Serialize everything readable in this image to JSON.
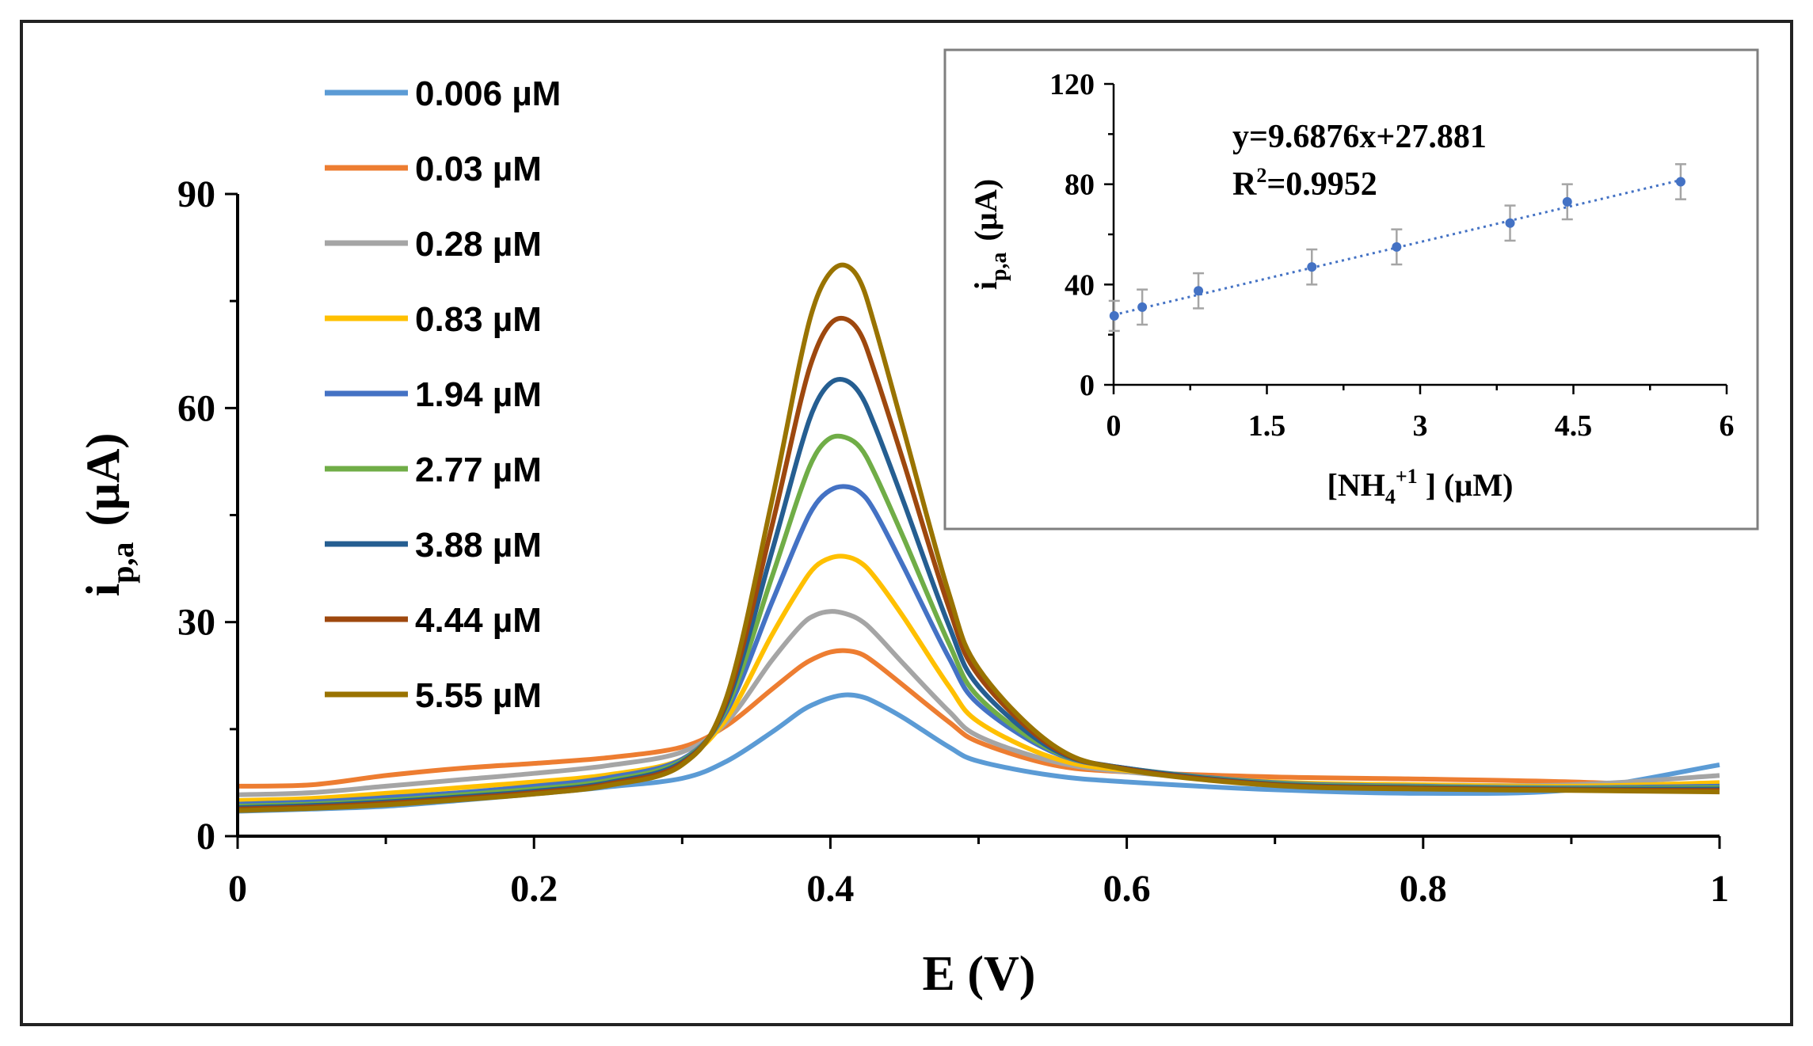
{
  "chart_data": [
    {
      "type": "line",
      "title": "",
      "xlabel": "E (V)",
      "ylabel_main": "i",
      "ylabel_sub": "p,a",
      "ylabel_unit": "(µA)",
      "xlim": [
        0,
        1
      ],
      "ylim": [
        0,
        90
      ],
      "xticks": [
        0,
        0.2,
        0.4,
        0.6,
        0.8,
        1
      ],
      "xtick_labels": [
        "0",
        "0.2",
        "0.4",
        "0.6",
        "0.8",
        "1"
      ],
      "yticks": [
        0,
        30,
        60,
        90
      ],
      "ytick_labels": [
        "0",
        "30",
        "60",
        "90"
      ],
      "grid": false,
      "legend_position": "top-left",
      "x": [
        0,
        0.05,
        0.1,
        0.15,
        0.2,
        0.25,
        0.3,
        0.33,
        0.36,
        0.38,
        0.39,
        0.4,
        0.41,
        0.42,
        0.43,
        0.45,
        0.48,
        0.5,
        0.55,
        0.6,
        0.7,
        0.8,
        0.9,
        1
      ],
      "series": [
        {
          "name": "0.006 µM",
          "color": "#5B9BD5",
          "values": [
            3.5,
            3.8,
            4.2,
            5.0,
            5.9,
            6.9,
            8.1,
            10.5,
            14.5,
            17.5,
            18.6,
            19.4,
            19.8,
            19.6,
            18.8,
            16.5,
            12.5,
            10.5,
            8.5,
            7.6,
            6.5,
            6.0,
            6.5,
            10.0
          ]
        },
        {
          "name": "0.03 µM",
          "color": "#ED7D31",
          "values": [
            7.0,
            7.2,
            8.5,
            9.5,
            10.2,
            11.0,
            12.5,
            15.5,
            20.5,
            23.8,
            25.0,
            25.8,
            26.0,
            25.6,
            24.3,
            21.0,
            16.0,
            13.2,
            10.0,
            9.0,
            8.3,
            8.0,
            7.6,
            6.8
          ]
        },
        {
          "name": "0.28 µM",
          "color": "#A5A5A5",
          "values": [
            5.8,
            6.1,
            7.0,
            7.9,
            8.8,
            9.9,
            11.8,
            16.0,
            24.5,
            29.5,
            31.0,
            31.5,
            31.2,
            30.3,
            28.5,
            24.0,
            17.5,
            14.0,
            10.5,
            9.0,
            7.5,
            7.2,
            7.2,
            8.5
          ]
        },
        {
          "name": "0.83 µM",
          "color": "#FFC000",
          "values": [
            5.0,
            5.3,
            6.0,
            6.8,
            7.6,
            8.6,
            10.8,
            16.5,
            28.0,
            35.0,
            37.8,
            39.0,
            39.2,
            38.4,
            36.3,
            30.5,
            21.0,
            16.0,
            11.0,
            9.2,
            7.6,
            7.2,
            7.0,
            7.5
          ]
        },
        {
          "name": "1.94 µM",
          "color": "#4472C4",
          "values": [
            4.5,
            4.8,
            5.4,
            6.1,
            7.0,
            8.2,
            10.8,
            17.5,
            32.5,
            42.5,
            46.5,
            48.5,
            49.0,
            48.2,
            45.5,
            37.5,
            25.0,
            18.5,
            11.8,
            9.5,
            7.5,
            7.0,
            6.8,
            7.0
          ]
        },
        {
          "name": "2.77 µM",
          "color": "#70AD47",
          "values": [
            4.2,
            4.5,
            5.0,
            5.8,
            6.6,
            7.8,
            10.6,
            18.0,
            36.0,
            48.5,
            53.5,
            55.8,
            55.9,
            54.5,
            50.8,
            41.5,
            27.0,
            19.5,
            12.0,
            9.5,
            7.4,
            6.9,
            6.7,
            6.8
          ]
        },
        {
          "name": "3.88 µM",
          "color": "#255E91",
          "values": [
            4.0,
            4.3,
            4.8,
            5.5,
            6.3,
            7.5,
            10.4,
            18.5,
            39.5,
            54.5,
            60.5,
            63.5,
            63.9,
            62.0,
            57.5,
            46.5,
            29.5,
            21.0,
            12.2,
            9.5,
            7.3,
            6.8,
            6.6,
            6.6
          ]
        },
        {
          "name": "4.44 µM",
          "color": "#9E480E",
          "values": [
            3.8,
            4.1,
            4.6,
            5.3,
            6.1,
            7.3,
            10.2,
            19.0,
            43.0,
            61.0,
            68.0,
            71.8,
            72.5,
            70.5,
            65.0,
            52.0,
            32.0,
            22.5,
            12.5,
            9.4,
            7.2,
            6.7,
            6.5,
            6.4
          ]
        },
        {
          "name": "5.55 µM",
          "color": "#997300",
          "values": [
            3.6,
            3.9,
            4.4,
            5.1,
            5.9,
            7.1,
            10.0,
            19.5,
            46.5,
            67.0,
            75.0,
            79.0,
            80.0,
            77.8,
            71.5,
            56.5,
            34.0,
            23.5,
            12.8,
            9.3,
            7.1,
            6.6,
            6.4,
            6.2
          ]
        }
      ]
    },
    {
      "type": "scatter",
      "title": "",
      "xlabel": "[NH4+1 ] (µM)",
      "xlabel_parts": {
        "pre": "[NH",
        "sub": "4",
        "sup": "+1",
        "post": " ] (µM)"
      },
      "ylabel_main": "i",
      "ylabel_sub": "p,a",
      "ylabel_unit": "(µA)",
      "xlim": [
        0,
        6
      ],
      "ylim": [
        0,
        120
      ],
      "xticks": [
        0,
        1.5,
        3,
        4.5,
        6
      ],
      "xtick_labels": [
        "0",
        "1.5",
        "3",
        "4.5",
        "6"
      ],
      "yticks": [
        0,
        40,
        80,
        120
      ],
      "ytick_labels": [
        "0",
        "40",
        "80",
        "120"
      ],
      "grid": false,
      "marker_color": "#4472C4",
      "errorbar_color": "#A5A5A5",
      "x": [
        0.006,
        0.28,
        0.83,
        1.94,
        2.77,
        3.88,
        4.44,
        5.55
      ],
      "y": [
        27.5,
        31.0,
        37.5,
        47.0,
        55.0,
        64.5,
        73.0,
        81.0
      ],
      "yerr": [
        6,
        7,
        7,
        7,
        7,
        7,
        7,
        7
      ],
      "trendline": {
        "slope": 9.6876,
        "intercept": 27.881,
        "style": "dotted"
      },
      "equation": "y=9.6876x+27.881",
      "r2_main": "R",
      "r2_sup": "2",
      "r2_value": "=0.9952"
    }
  ]
}
